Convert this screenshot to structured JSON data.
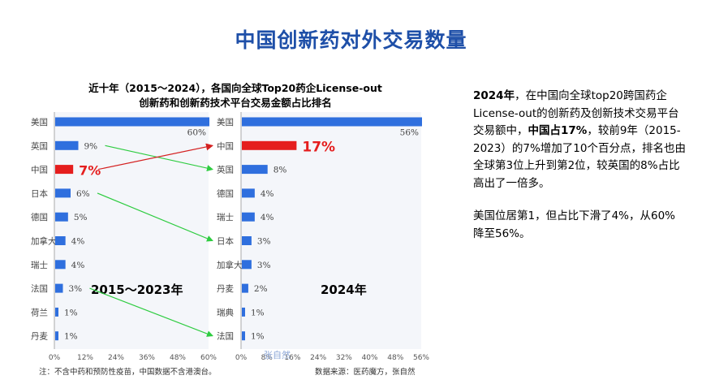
{
  "slide_title": "中国创新药对外交易数量",
  "chart_title_line1": "近十年（2015～2024），各国向全球Top20药企License-out",
  "chart_title_line2": "创新药和创新药技术平台交易金额占比排名",
  "description": {
    "p1": [
      {
        "text": "2024年",
        "bold": true
      },
      {
        "text": "，在中国向全球top20跨国药企License-out的创新药及创新技术交易平台交易额中，",
        "bold": false
      },
      {
        "text": "中国占17%",
        "bold": true
      },
      {
        "text": "，较前9年（2015-2023）的7%增加了10个百分点，排名也由全球第3位上升到第2位，较英国的8%占比高出了一倍多。",
        "bold": false
      }
    ],
    "p2": "美国位居第1，但占比下滑了4%，从60%降至56%。"
  },
  "colors": {
    "bar": "#2f6fde",
    "highlight_bar": "#e51e1e",
    "title": "#1e4fa8",
    "arrow_green": "#2ecc40",
    "arrow_red": "#d42020",
    "watermark": "#8ea8d8"
  },
  "chart_data": [
    {
      "type": "bar",
      "orientation": "horizontal",
      "period_label": "2015～2023年",
      "categories": [
        "美国",
        "英国",
        "中国",
        "日本",
        "德国",
        "加拿大",
        "瑞士",
        "法国",
        "荷兰",
        "丹麦"
      ],
      "values": [
        60,
        9,
        7,
        6,
        5,
        4,
        4,
        3,
        1,
        1
      ],
      "value_labels": [
        "60%",
        "9%",
        "7%",
        "6%",
        "5%",
        "4%",
        "4%",
        "3%",
        "1%",
        "1%"
      ],
      "highlight": "中国",
      "xlim": [
        0,
        60
      ],
      "xticks": [
        "0%",
        "12%",
        "24%",
        "36%",
        "48%",
        "60%"
      ]
    },
    {
      "type": "bar",
      "orientation": "horizontal",
      "period_label": "2024年",
      "categories": [
        "美国",
        "中国",
        "英国",
        "德国",
        "瑞士",
        "日本",
        "加拿大",
        "丹麦",
        "瑞典",
        "法国"
      ],
      "values": [
        56,
        17,
        8,
        4,
        4,
        3,
        3,
        2,
        1,
        1
      ],
      "value_labels": [
        "56%",
        "17%",
        "8%",
        "4%",
        "4%",
        "3%",
        "3%",
        "2%",
        "1%",
        "1%"
      ],
      "highlight": "中国",
      "xlim": [
        0,
        56
      ],
      "xticks": [
        "0%",
        "8%",
        "16%",
        "24%",
        "32%",
        "40%",
        "48%",
        "56%"
      ]
    }
  ],
  "arrows": [
    {
      "from": "英国",
      "to": "英国",
      "color": "green"
    },
    {
      "from": "中国",
      "to": "中国",
      "color": "red"
    },
    {
      "from": "日本",
      "to": "日本",
      "color": "green"
    },
    {
      "from": "法国",
      "to": "法国",
      "color": "green"
    }
  ],
  "watermark": "张自然",
  "footnote_left": "注：不含中药和预防性疫苗，中国数据不含港澳台。",
  "footnote_right": "数据来源：医药魔方，张自然"
}
